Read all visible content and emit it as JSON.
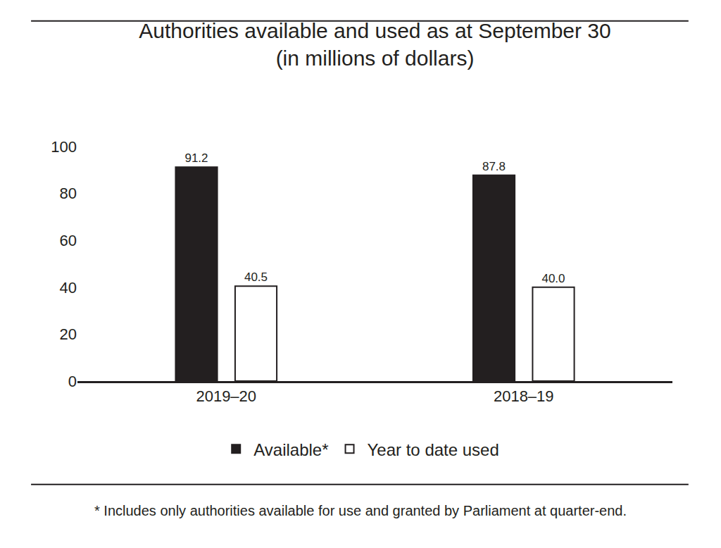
{
  "chart_data": {
    "type": "bar",
    "title": "Authorities available and used as at September 30",
    "subtitle": "(in millions of dollars)",
    "categories": [
      "2019–20",
      "2018–19"
    ],
    "series": [
      {
        "name": "Available*",
        "color": "#231f20",
        "values": [
          91.2,
          87.8
        ],
        "value_labels": [
          "91.2",
          "87.8"
        ]
      },
      {
        "name": "Year to date used",
        "color": "#ffffff",
        "values": [
          40.5,
          40.0
        ],
        "value_labels": [
          "40.5",
          "40.0"
        ]
      }
    ],
    "ylim": [
      0,
      100
    ],
    "yticks": [
      0,
      20,
      40,
      60,
      80,
      100
    ],
    "grid": false,
    "legend": "bottom",
    "data_labels": true,
    "footnote": "* Includes only authorities available for use and granted by Parliament at quarter-end."
  }
}
